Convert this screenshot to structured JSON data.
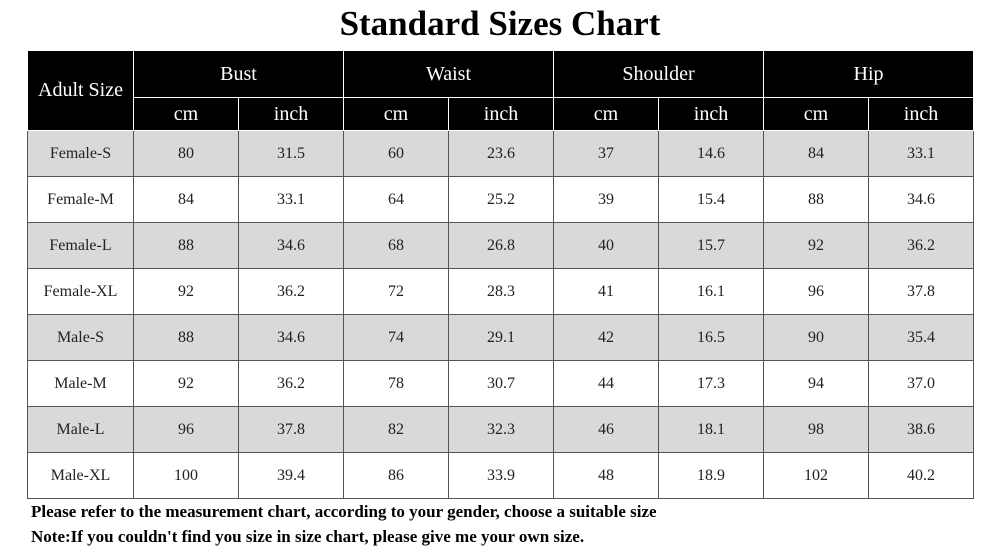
{
  "title": "Standard Sizes Chart",
  "table": {
    "corner": "Adult Size",
    "groups": [
      "Bust",
      "Waist",
      "Shoulder",
      "Hip"
    ],
    "units": [
      "cm",
      "inch",
      "cm",
      "inch",
      "cm",
      "inch",
      "cm",
      "inch"
    ],
    "rows": [
      [
        "Female-S",
        "80",
        "31.5",
        "60",
        "23.6",
        "37",
        "14.6",
        "84",
        "33.1"
      ],
      [
        "Female-M",
        "84",
        "33.1",
        "64",
        "25.2",
        "39",
        "15.4",
        "88",
        "34.6"
      ],
      [
        "Female-L",
        "88",
        "34.6",
        "68",
        "26.8",
        "40",
        "15.7",
        "92",
        "36.2"
      ],
      [
        "Female-XL",
        "92",
        "36.2",
        "72",
        "28.3",
        "41",
        "16.1",
        "96",
        "37.8"
      ],
      [
        "Male-S",
        "88",
        "34.6",
        "74",
        "29.1",
        "42",
        "16.5",
        "90",
        "35.4"
      ],
      [
        "Male-M",
        "92",
        "36.2",
        "78",
        "30.7",
        "44",
        "17.3",
        "94",
        "37.0"
      ],
      [
        "Male-L",
        "96",
        "37.8",
        "82",
        "32.3",
        "46",
        "18.1",
        "98",
        "38.6"
      ],
      [
        "Male-XL",
        "100",
        "39.4",
        "86",
        "33.9",
        "48",
        "18.9",
        "102",
        "40.2"
      ]
    ]
  },
  "notes": [
    "Please refer to the measurement chart, according to your gender, choose a suitable size",
    "Note:If you couldn't find you size in size chart, please give me your own size."
  ]
}
